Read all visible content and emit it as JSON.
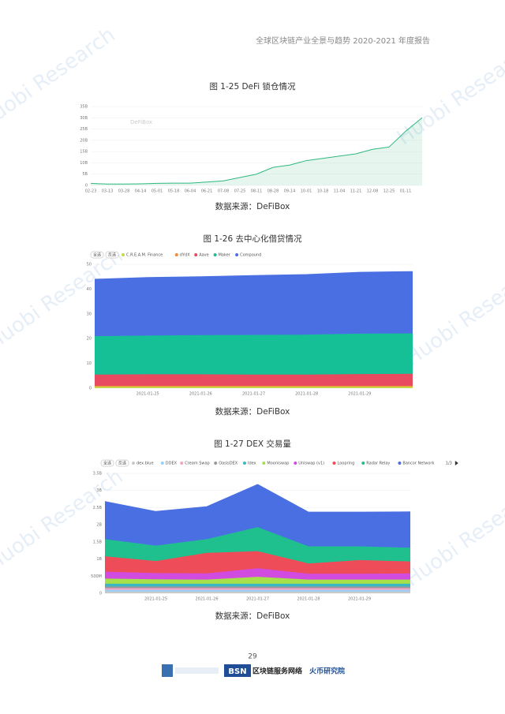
{
  "header": "全球区块链产业全景与趋势 2020-2021 年度报告",
  "watermark": "Huobi Research",
  "page_number": "29",
  "footer": {
    "bsn": "BSN",
    "bsn_text": "区块链服务网络",
    "huobi": "火币研究院"
  },
  "chart_data": [
    {
      "type": "area",
      "title": "图 1-25 DeFi 锁仓情况",
      "source": "数据来源：DeFiBox",
      "watermark": "DeFiBox",
      "color": "#2fb87f",
      "categories": [
        "02-23",
        "03-13",
        "03-28",
        "04-14",
        "05-01",
        "05-18",
        "06-04",
        "06-21",
        "07-08",
        "07-25",
        "08-11",
        "08-28",
        "09-14",
        "10-01",
        "10-18",
        "11-04",
        "11-21",
        "12-08",
        "12-25",
        "01-11",
        null
      ],
      "values": [
        0.9,
        0.6,
        0.6,
        0.7,
        0.9,
        1.0,
        1.0,
        1.5,
        2.0,
        3.5,
        5,
        8,
        9,
        11,
        12,
        13,
        14,
        16,
        17,
        24,
        30
      ],
      "ylim": [
        0,
        35
      ],
      "yticks": [
        0,
        {
          "value": 5,
          "label": "5B"
        },
        {
          "value": 10,
          "label": "10B"
        },
        {
          "value": 15,
          "label": "15B"
        },
        {
          "value": 20,
          "label": "20B"
        },
        {
          "value": 25,
          "label": "25B"
        },
        {
          "value": 30,
          "label": "30B"
        },
        {
          "value": 35,
          "label": "35B"
        }
      ],
      "grid": true
    },
    {
      "type": "stacked_area",
      "title": "图 1-26  去中心化借贷情况",
      "source": "数据来源：DeFiBox",
      "legend_buttons": [
        "全选",
        "反选"
      ],
      "categories": [
        null,
        "2021-01-25",
        "2021-01-26",
        "2021-01-27",
        "2021-01-28",
        "2021-01-29",
        null
      ],
      "series": [
        {
          "name": "C.R.E.A.M. Finance",
          "color": "#c7d94a",
          "values": [
            0.6,
            0.6,
            0.6,
            0.6,
            0.6,
            0.6,
            0.6
          ]
        },
        {
          "name": "dYdX",
          "color": "#f08a3c",
          "values": [
            0.4,
            0.4,
            0.4,
            0.4,
            0.4,
            0.4,
            0.4
          ]
        },
        {
          "name": "Aave",
          "color": "#e84a5f",
          "values": [
            4.5,
            4.6,
            4.6,
            4.5,
            4.5,
            4.7,
            4.8
          ]
        },
        {
          "name": "Maker",
          "color": "#16c096",
          "values": [
            15.5,
            15.6,
            15.8,
            16,
            16.1,
            16.3,
            16.3
          ]
        },
        {
          "name": "Compound",
          "color": "#4a6fe3",
          "values": [
            23,
            23.5,
            23.6,
            24,
            24.3,
            24.8,
            25
          ]
        }
      ],
      "ylim": [
        0,
        50
      ],
      "yticks": [
        0,
        10,
        20,
        30,
        40,
        50
      ],
      "grid": true
    },
    {
      "type": "stacked_area",
      "title": "图 1-27 DEX 交易量",
      "source": "数据来源：DeFiBox",
      "legend_buttons": [
        "全选",
        "反选"
      ],
      "legend_page": "1/3",
      "categories": [
        null,
        "2021-01-25",
        "2021-01-26",
        "2021-01-27",
        "2021-01-28",
        "2021-01-29",
        null
      ],
      "series": [
        {
          "name": "dex.blue",
          "color": "#c9c9c9",
          "values": [
            0.05,
            0.05,
            0.05,
            0.05,
            0.05,
            0.05,
            0.05
          ]
        },
        {
          "name": "DDEX",
          "color": "#9ad0f5",
          "values": [
            0.05,
            0.05,
            0.05,
            0.05,
            0.05,
            0.05,
            0.05
          ]
        },
        {
          "name": "Cream Swap",
          "color": "#f5a3c7",
          "values": [
            0.05,
            0.05,
            0.05,
            0.05,
            0.05,
            0.05,
            0.05
          ]
        },
        {
          "name": "OasisDEX",
          "color": "#999999",
          "values": [
            0.05,
            0.05,
            0.05,
            0.05,
            0.05,
            0.05,
            0.05
          ]
        },
        {
          "name": "Idex",
          "color": "#3ab8c5",
          "values": [
            0.08,
            0.08,
            0.08,
            0.08,
            0.08,
            0.08,
            0.08
          ]
        },
        {
          "name": "Mooniswap",
          "color": "#a6e04a",
          "values": [
            0.15,
            0.13,
            0.12,
            0.2,
            0.12,
            0.12,
            0.12
          ]
        },
        {
          "name": "Uniswap (v1)",
          "color": "#d14be0",
          "values": [
            0.2,
            0.18,
            0.18,
            0.25,
            0.17,
            0.17,
            0.18
          ]
        },
        {
          "name": "Loopring",
          "color": "#ef4c59",
          "values": [
            0.45,
            0.35,
            0.6,
            0.5,
            0.3,
            0.4,
            0.35
          ]
        },
        {
          "name": "Radar Relay",
          "color": "#1fc08e",
          "values": [
            0.5,
            0.45,
            0.4,
            0.7,
            0.5,
            0.4,
            0.4
          ]
        },
        {
          "name": "Bancor Network",
          "color": "#4a6fe3",
          "values": [
            1.1,
            1.0,
            0.95,
            1.25,
            1.0,
            1.0,
            1.05
          ]
        }
      ],
      "ylim": [
        0,
        3.5
      ],
      "yticks": [
        0,
        {
          "value": 0.5,
          "label": "500M"
        },
        {
          "value": 1,
          "label": "1B"
        },
        {
          "value": 1.5,
          "label": "1.5B"
        },
        {
          "value": 2,
          "label": "2B"
        },
        {
          "value": 2.5,
          "label": "2.5B"
        },
        {
          "value": 3,
          "label": "3B"
        },
        {
          "value": 3.5,
          "label": "3.5B"
        }
      ],
      "grid": true
    }
  ]
}
